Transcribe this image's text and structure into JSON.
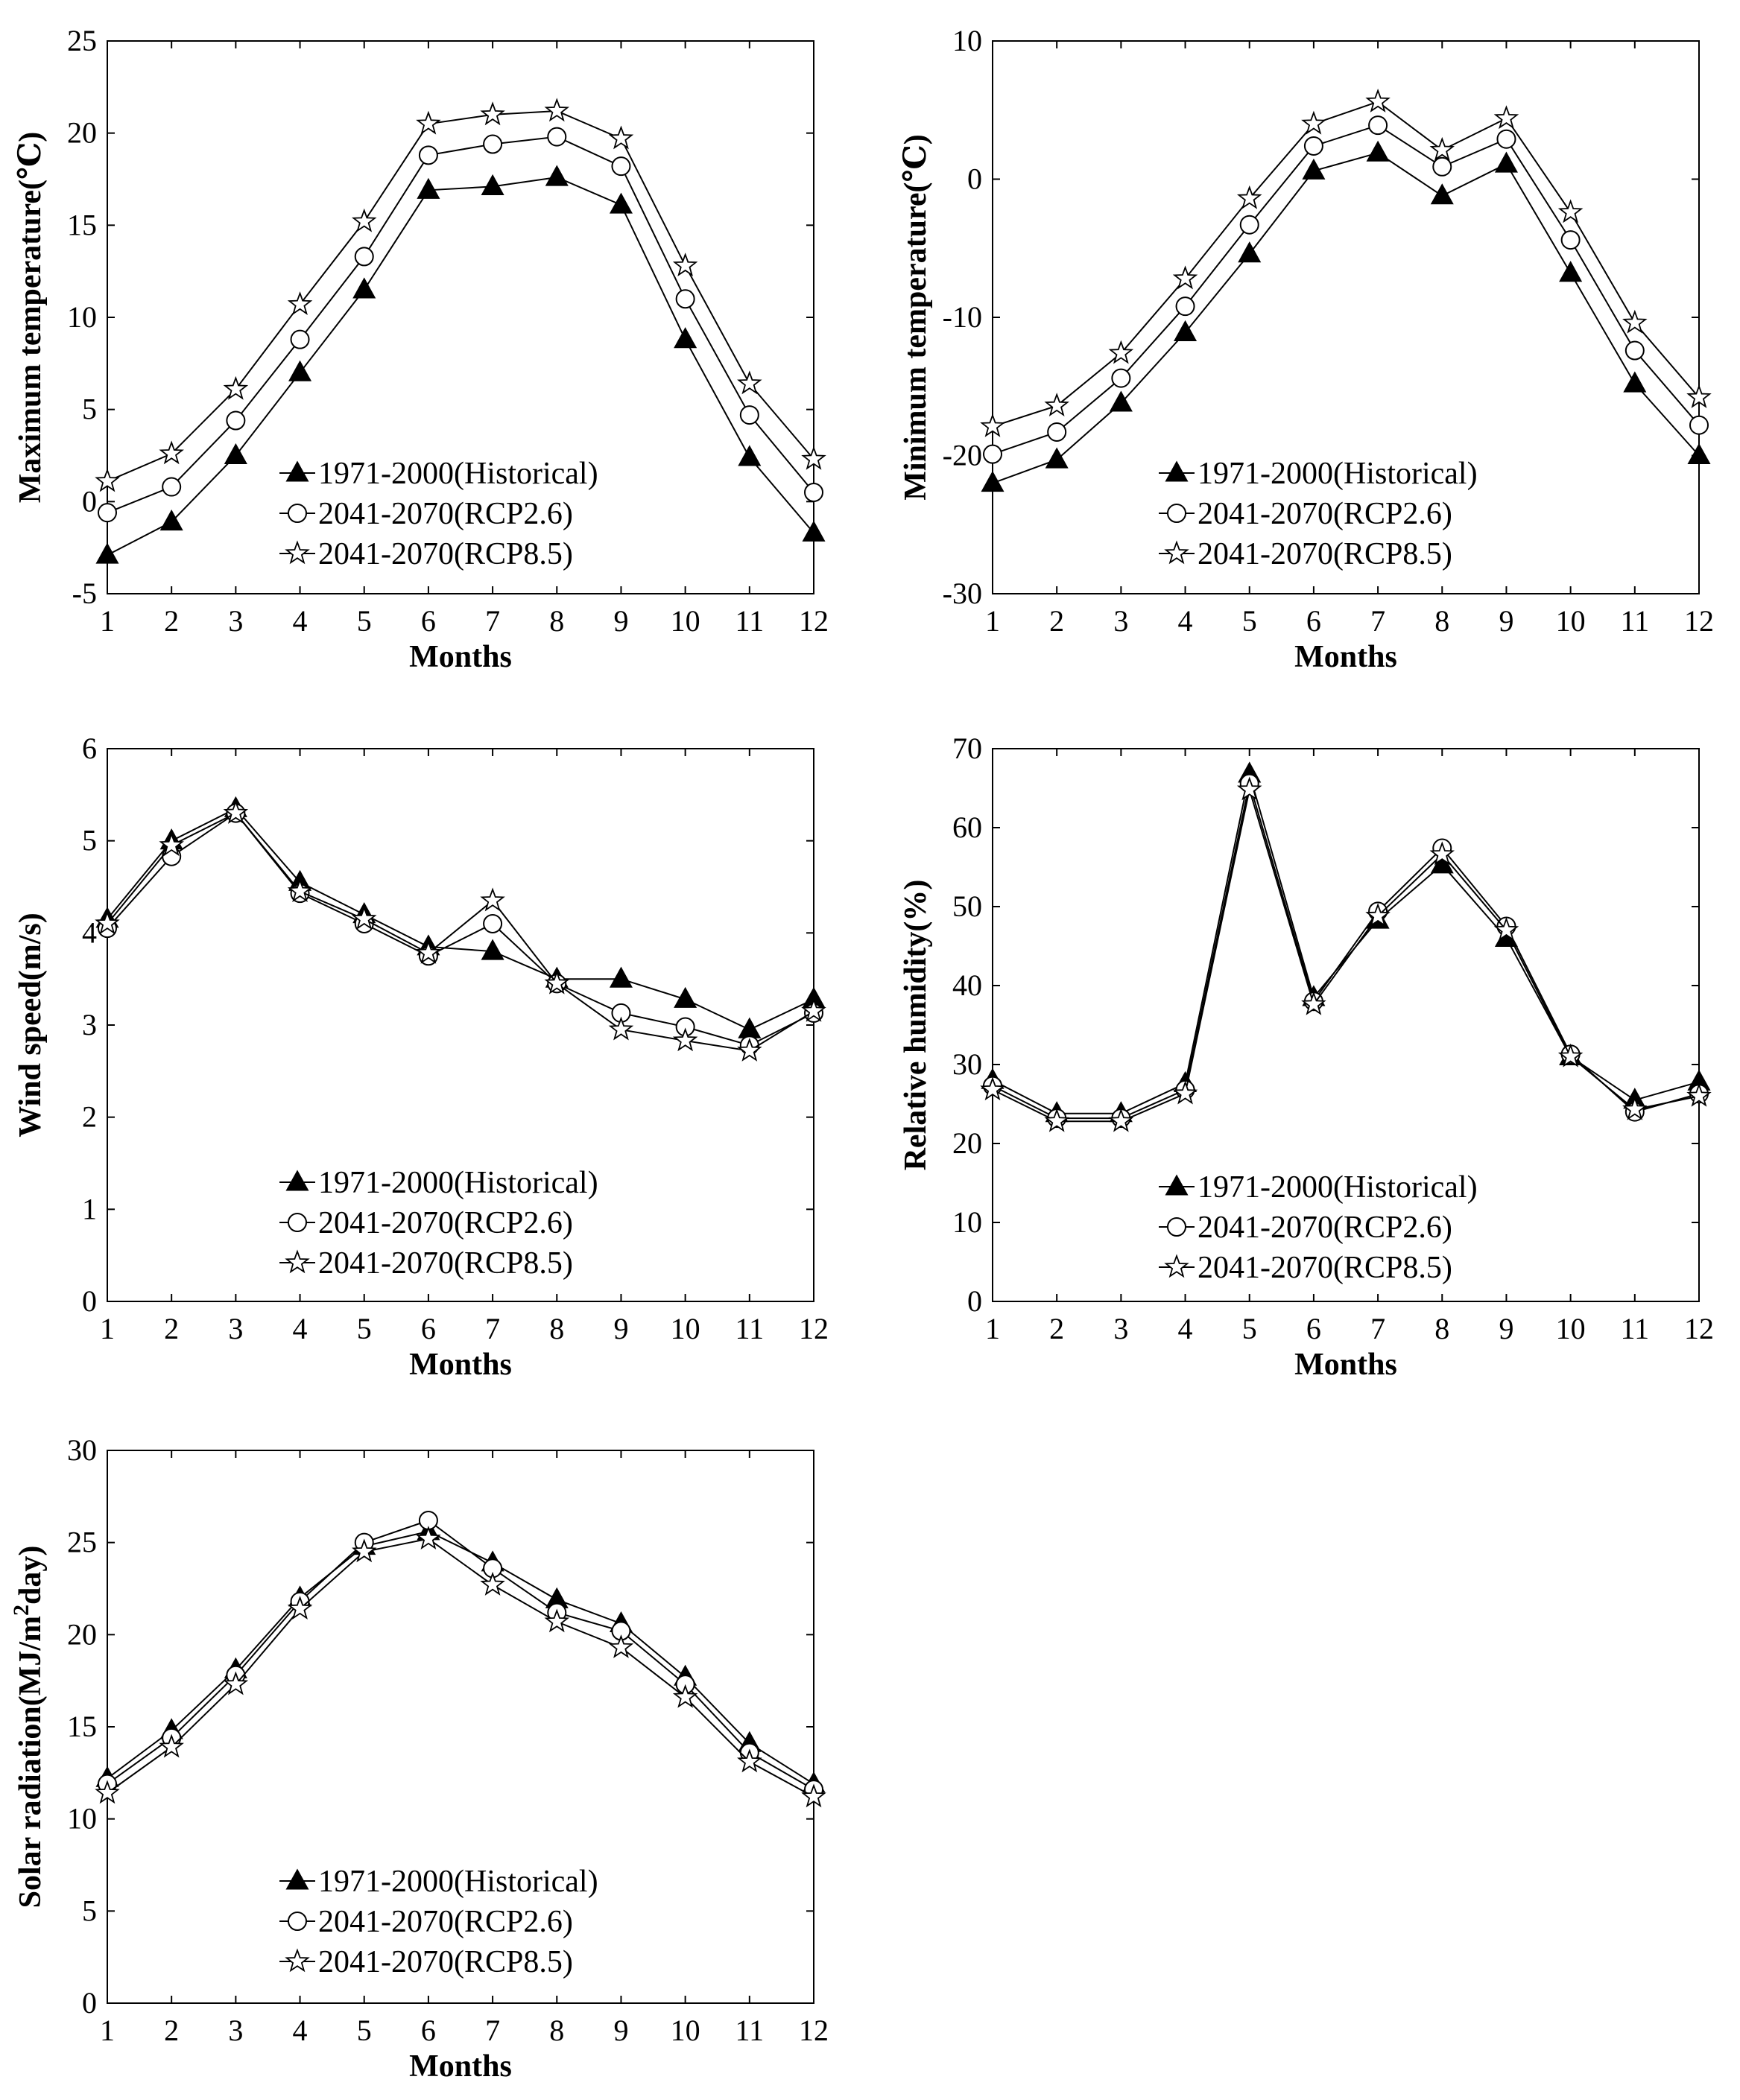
{
  "legend": [
    "1971-2000(Historical)",
    "2041-2070(RCP2.6)",
    "2041-2070(RCP8.5)"
  ],
  "colors": {
    "line": "#000000",
    "axis": "#000000",
    "background": "#ffffff"
  },
  "chart_data": [
    {
      "type": "line",
      "xlabel": "Months",
      "ylabel": "Maximum temperature(℃)",
      "categories": [
        "1",
        "2",
        "3",
        "4",
        "5",
        "6",
        "7",
        "8",
        "9",
        "10",
        "11",
        "12"
      ],
      "ylim": [
        -5,
        25
      ],
      "yticks": [
        -5,
        0,
        5,
        10,
        15,
        20,
        25
      ],
      "legend_placement": "bottom-center",
      "series": [
        {
          "name": "1971-2000(Historical)",
          "marker": "filled-triangle",
          "values": [
            -2.9,
            -1.1,
            2.5,
            7.0,
            11.5,
            16.9,
            17.1,
            17.6,
            16.1,
            8.8,
            2.4,
            -1.7
          ]
        },
        {
          "name": "2041-2070(RCP2.6)",
          "marker": "open-circle",
          "values": [
            -0.6,
            0.8,
            4.4,
            8.8,
            13.3,
            18.8,
            19.4,
            19.8,
            18.2,
            11.0,
            4.7,
            0.5
          ]
        },
        {
          "name": "2041-2070(RCP8.5)",
          "marker": "open-star",
          "values": [
            1.1,
            2.6,
            6.1,
            10.7,
            15.2,
            20.5,
            21.0,
            21.2,
            19.7,
            12.8,
            6.4,
            2.3
          ]
        }
      ]
    },
    {
      "type": "line",
      "xlabel": "Months",
      "ylabel": "Minimum temperature(℃)",
      "categories": [
        "1",
        "2",
        "3",
        "4",
        "5",
        "6",
        "7",
        "8",
        "9",
        "10",
        "11",
        "12"
      ],
      "ylim": [
        -30,
        10
      ],
      "yticks": [
        -30,
        -20,
        -10,
        0,
        10
      ],
      "legend_placement": "bottom-center",
      "series": [
        {
          "name": "1971-2000(Historical)",
          "marker": "filled-triangle",
          "values": [
            -22.0,
            -20.3,
            -16.2,
            -11.1,
            -5.4,
            0.6,
            1.9,
            -1.2,
            1.1,
            -6.8,
            -14.8,
            -20.0
          ]
        },
        {
          "name": "2041-2070(RCP2.6)",
          "marker": "open-circle",
          "values": [
            -19.9,
            -18.3,
            -14.4,
            -9.2,
            -3.3,
            2.4,
            3.9,
            0.9,
            2.9,
            -4.4,
            -12.4,
            -17.8
          ]
        },
        {
          "name": "2041-2070(RCP8.5)",
          "marker": "open-star",
          "values": [
            -17.9,
            -16.4,
            -12.6,
            -7.2,
            -1.4,
            4.0,
            5.6,
            2.1,
            4.4,
            -2.4,
            -10.4,
            -15.8
          ]
        }
      ]
    },
    {
      "type": "line",
      "xlabel": "Months",
      "ylabel": "Wind speed(m/s)",
      "categories": [
        "1",
        "2",
        "3",
        "4",
        "5",
        "6",
        "7",
        "8",
        "9",
        "10",
        "11",
        "12"
      ],
      "ylim": [
        0,
        6
      ],
      "yticks": [
        0,
        1,
        2,
        3,
        4,
        5,
        6
      ],
      "legend_placement": "bottom-center",
      "series": [
        {
          "name": "1971-2000(Historical)",
          "marker": "filled-triangle",
          "values": [
            4.15,
            5.0,
            5.35,
            4.55,
            4.2,
            3.85,
            3.8,
            3.5,
            3.5,
            3.28,
            2.95,
            3.28
          ]
        },
        {
          "name": "2041-2070(RCP2.6)",
          "marker": "open-circle",
          "values": [
            4.05,
            4.83,
            5.3,
            4.43,
            4.1,
            3.75,
            4.1,
            3.45,
            3.13,
            2.98,
            2.78,
            3.13
          ]
        },
        {
          "name": "2041-2070(RCP8.5)",
          "marker": "open-star",
          "values": [
            4.1,
            4.95,
            5.3,
            4.45,
            4.15,
            3.78,
            4.35,
            3.45,
            2.95,
            2.83,
            2.72,
            3.15
          ]
        }
      ]
    },
    {
      "type": "line",
      "xlabel": "Months",
      "ylabel": "Relative humidity(%)",
      "categories": [
        "1",
        "2",
        "3",
        "4",
        "5",
        "6",
        "7",
        "8",
        "9",
        "10",
        "11",
        "12"
      ],
      "ylim": [
        0,
        70
      ],
      "yticks": [
        0,
        10,
        20,
        30,
        40,
        50,
        60,
        70
      ],
      "legend_placement": "bottom-center",
      "series": [
        {
          "name": "1971-2000(Historical)",
          "marker": "filled-triangle",
          "values": [
            28.0,
            23.8,
            23.8,
            27.6,
            66.8,
            38.5,
            48.3,
            55.3,
            46.0,
            31.0,
            25.5,
            27.8
          ]
        },
        {
          "name": "2041-2070(RCP2.6)",
          "marker": "open-circle",
          "values": [
            27.3,
            23.2,
            23.2,
            26.8,
            65.6,
            38.0,
            49.4,
            57.4,
            47.5,
            31.3,
            24.0,
            26.3
          ]
        },
        {
          "name": "2041-2070(RCP8.5)",
          "marker": "open-star",
          "values": [
            26.8,
            22.8,
            22.8,
            26.3,
            64.8,
            37.6,
            48.8,
            56.6,
            47.0,
            31.0,
            24.3,
            26.0
          ]
        }
      ]
    },
    {
      "type": "line",
      "xlabel": "Months",
      "ylabel": "Solar radiation(MJ/m",
      "ylabel_sup": "2",
      "ylabel_tail": "day)",
      "categories": [
        "1",
        "2",
        "3",
        "4",
        "5",
        "6",
        "7",
        "8",
        "9",
        "10",
        "11",
        "12"
      ],
      "ylim": [
        0,
        30
      ],
      "yticks": [
        0,
        5,
        10,
        15,
        20,
        25,
        30
      ],
      "legend_placement": "bottom-center",
      "series": [
        {
          "name": "1971-2000(Historical)",
          "marker": "filled-triangle",
          "values": [
            12.2,
            14.8,
            18.1,
            22.0,
            24.8,
            25.6,
            23.9,
            21.9,
            20.6,
            17.7,
            14.1,
            11.9
          ]
        },
        {
          "name": "2041-2070(RCP2.6)",
          "marker": "open-circle",
          "values": [
            11.9,
            14.4,
            17.8,
            21.8,
            25.0,
            26.2,
            23.6,
            21.2,
            20.2,
            17.3,
            13.6,
            11.6
          ]
        },
        {
          "name": "2041-2070(RCP8.5)",
          "marker": "open-star",
          "values": [
            11.4,
            13.9,
            17.3,
            21.4,
            24.5,
            25.2,
            22.7,
            20.7,
            19.3,
            16.6,
            13.1,
            11.2
          ]
        }
      ]
    }
  ]
}
